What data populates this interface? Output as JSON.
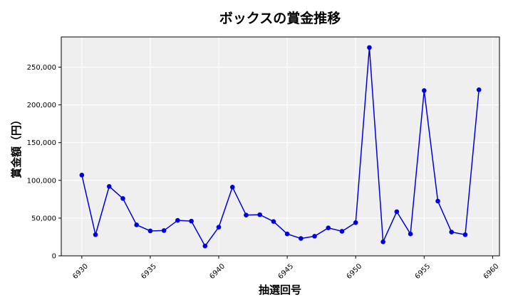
{
  "chart_data": {
    "type": "line",
    "title": "ボックスの賞金推移",
    "xlabel": "抽選回号",
    "ylabel": "賞金額（円）",
    "x": [
      6930,
      6931,
      6932,
      6933,
      6934,
      6935,
      6936,
      6937,
      6938,
      6939,
      6940,
      6941,
      6942,
      6943,
      6944,
      6945,
      6946,
      6947,
      6948,
      6949,
      6950,
      6951,
      6952,
      6953,
      6954,
      6955,
      6956,
      6957,
      6958,
      6959
    ],
    "series": [
      {
        "values": [
          107000,
          28000,
          92000,
          76000,
          41000,
          33000,
          33500,
          47000,
          46000,
          13000,
          38000,
          91000,
          54000,
          54500,
          45500,
          29000,
          23000,
          26000,
          37000,
          32500,
          44000,
          276000,
          18500,
          58500,
          29000,
          219000,
          72500,
          31500,
          28000,
          220000
        ],
        "color": "#0000dd"
      }
    ],
    "xlim": [
      6928.5,
      6960.5
    ],
    "ylim": [
      0,
      290000
    ],
    "x_ticks": [
      "6930",
      "6935",
      "6940",
      "6945",
      "6950",
      "6955",
      "6960"
    ],
    "y_ticks": [
      "0",
      "50,000",
      "100,000",
      "150,000",
      "200,000",
      "250,000"
    ],
    "grid": true,
    "colors": {
      "plot_background": "#efefef",
      "grid": "#ffffff",
      "line": "#0000dd"
    }
  }
}
